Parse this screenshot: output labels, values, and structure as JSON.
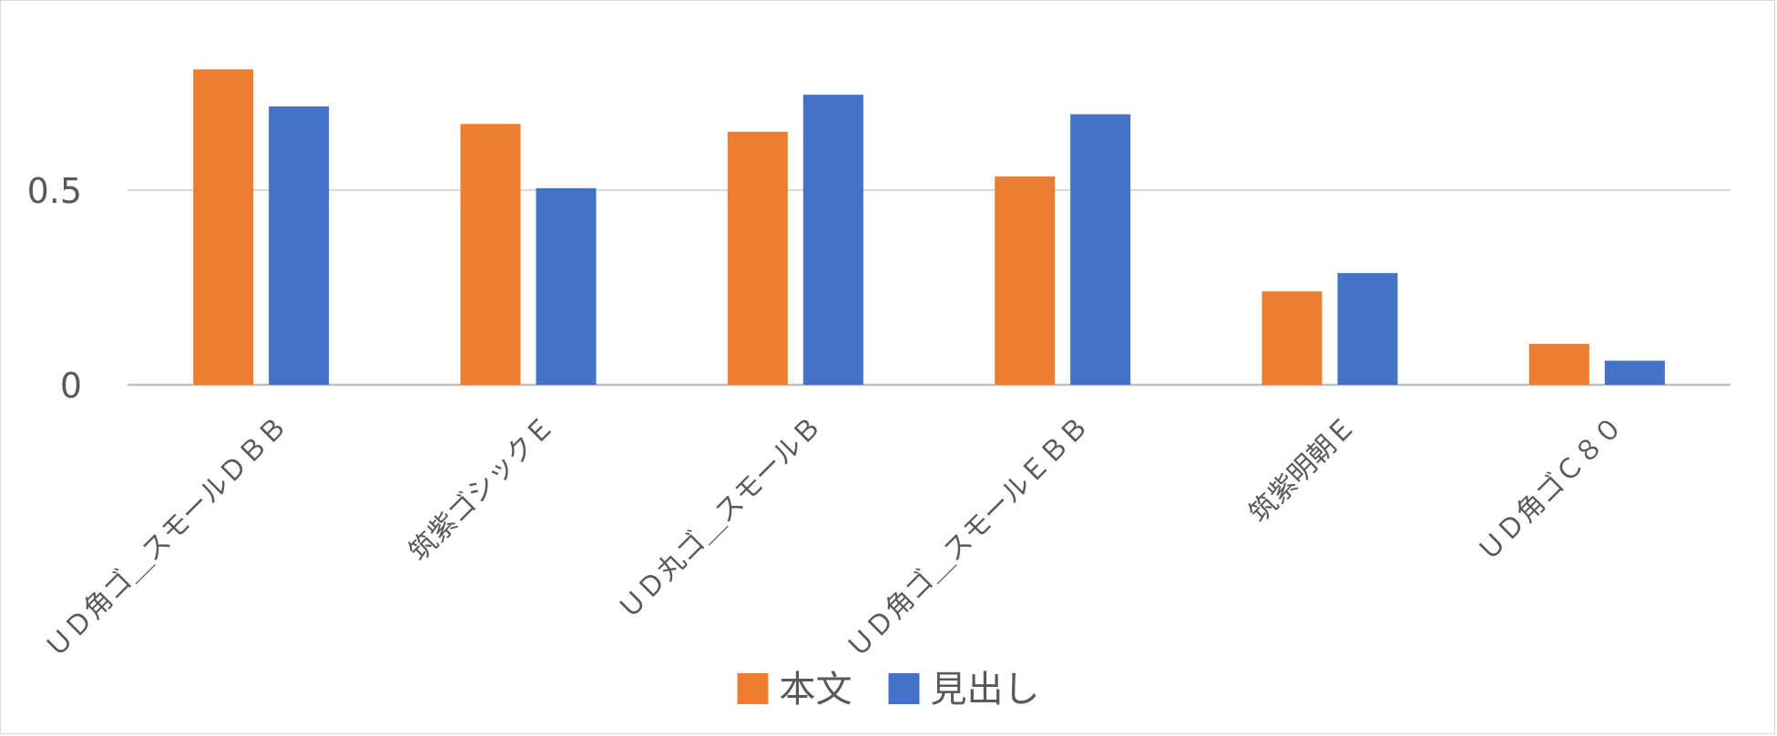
{
  "chart_data": {
    "type": "bar",
    "categories": [
      "ＵＤ角ゴ＿スモールＤＢＢ",
      "筑紫ゴシックＥ",
      "ＵＤ丸ゴ＿スモールＢ",
      "ＵＤ角ゴ＿スモールＥＢＢ",
      "筑紫明朝Ｅ",
      "ＵＤ角ゴＣ８０"
    ],
    "series": [
      {
        "name": "本文",
        "color": "#ED7D31",
        "values": [
          0.81,
          0.67,
          0.65,
          0.535,
          0.24,
          0.105
        ]
      },
      {
        "name": "見出し",
        "color": "#4472C4",
        "values": [
          0.715,
          0.505,
          0.745,
          0.695,
          0.287,
          0.062
        ]
      }
    ],
    "yticks": [
      "0",
      "0.5"
    ],
    "ytick_values": [
      0,
      0.5
    ],
    "ylim": [
      0,
      0.9
    ],
    "grid": true,
    "legend": "bottom",
    "gridline_color": "#D9D9D9",
    "axis_line_color": "#BFBFBF"
  }
}
